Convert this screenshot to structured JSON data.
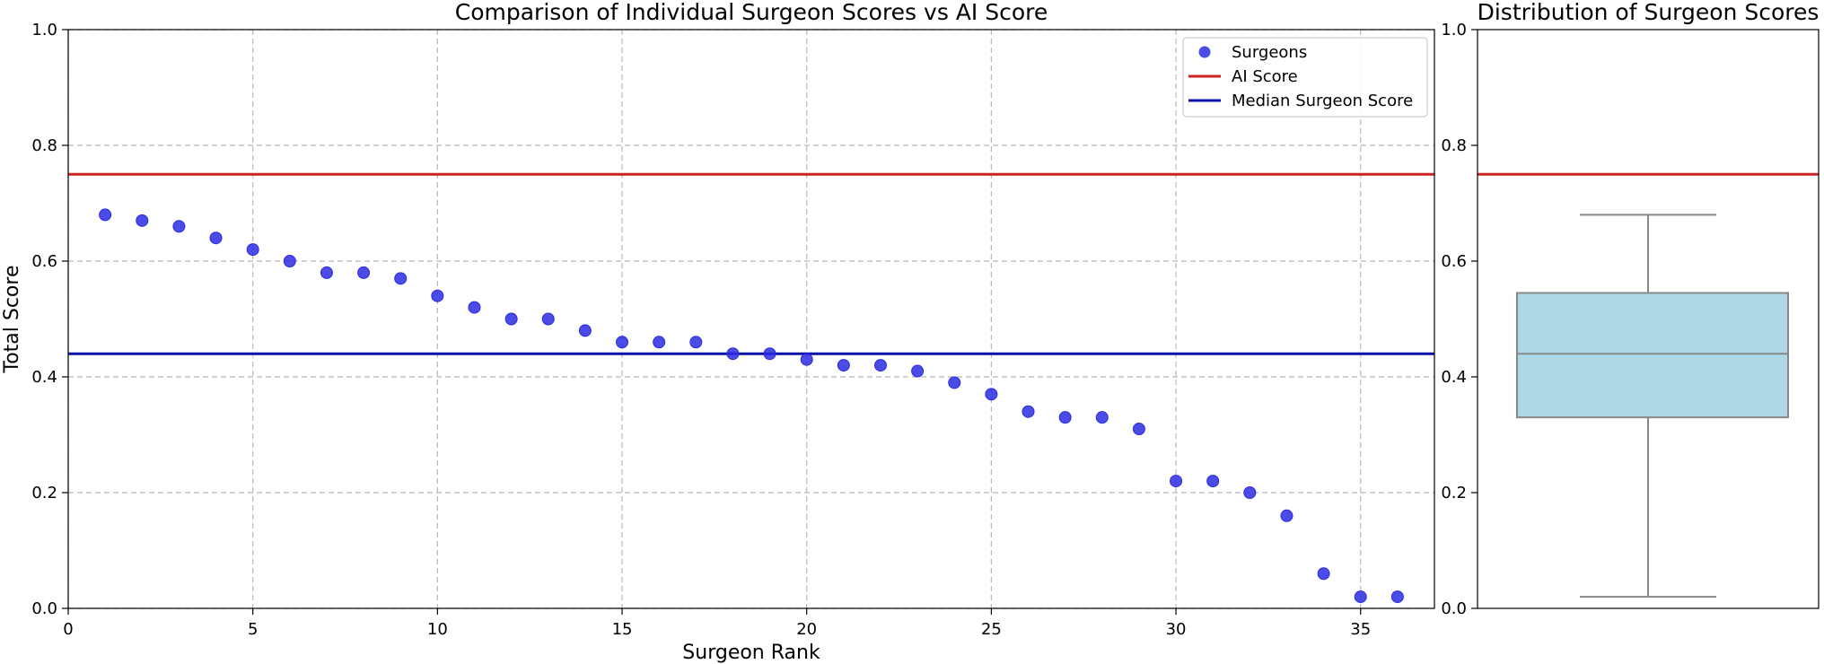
{
  "colors": {
    "surgeon_point": "#2b2be0",
    "ai_line": "#cc2222",
    "median_line": "#0c12a8",
    "box_fill": "#add8e6",
    "box_stroke": "#888888",
    "grid": "#b8b8b8"
  },
  "chart_data": [
    {
      "type": "scatter",
      "title": "Comparison of Individual Surgeon Scores vs AI Score",
      "xlabel": "Surgeon Rank",
      "ylabel": "Total Score",
      "xlim": [
        0,
        37
      ],
      "ylim": [
        0,
        1.0
      ],
      "xticks": [
        "0",
        "5",
        "10",
        "15",
        "20",
        "25",
        "30",
        "35"
      ],
      "yticks": [
        "0.0",
        "0.2",
        "0.4",
        "0.6",
        "0.8",
        "1.0"
      ],
      "grid": true,
      "legend_position": "top-right",
      "series": [
        {
          "name": "Surgeons",
          "type": "scatter",
          "x": [
            1,
            2,
            3,
            4,
            5,
            6,
            7,
            8,
            9,
            10,
            11,
            12,
            13,
            14,
            15,
            16,
            17,
            18,
            19,
            20,
            21,
            22,
            23,
            24,
            25,
            26,
            27,
            28,
            29,
            30,
            31,
            32,
            33,
            34,
            35,
            36
          ],
          "y": [
            0.68,
            0.67,
            0.66,
            0.64,
            0.62,
            0.6,
            0.58,
            0.58,
            0.57,
            0.54,
            0.52,
            0.5,
            0.5,
            0.48,
            0.46,
            0.46,
            0.46,
            0.44,
            0.44,
            0.43,
            0.42,
            0.42,
            0.41,
            0.39,
            0.37,
            0.34,
            0.33,
            0.33,
            0.31,
            0.22,
            0.22,
            0.2,
            0.16,
            0.06,
            0.02,
            0.02
          ]
        },
        {
          "name": "AI Score",
          "type": "hline",
          "y": 0.75
        },
        {
          "name": "Median Surgeon Score",
          "type": "hline",
          "y": 0.44
        }
      ]
    },
    {
      "type": "box",
      "title": "Distribution of Surgeon Scores",
      "ylim": [
        0,
        1.0
      ],
      "yticks": [
        "0.0",
        "0.2",
        "0.4",
        "0.6",
        "0.8",
        "1.0"
      ],
      "grid": false,
      "box": {
        "min": 0.02,
        "q1": 0.33,
        "median": 0.44,
        "q3": 0.545,
        "max": 0.68
      },
      "ai_score_line": 0.75
    }
  ]
}
